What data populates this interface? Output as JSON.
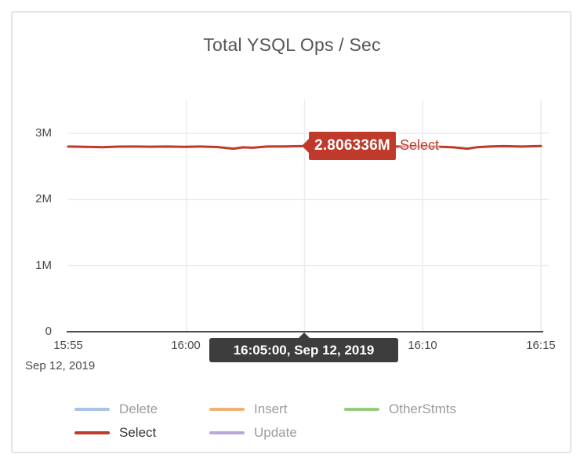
{
  "chart": {
    "title": "Total YSQL Ops / Sec"
  },
  "chart_data": {
    "type": "line",
    "title": "Total YSQL Ops / Sec",
    "x_axis": {
      "tick_labels": [
        "15:55",
        "16:00",
        "16:10",
        "16:15"
      ],
      "tick_minutes": [
        0,
        5,
        15,
        20
      ],
      "gridline_minutes": [
        5,
        10,
        15,
        20
      ],
      "start_time": "15:55",
      "end_time": "16:15",
      "date_label": "Sep 12, 2019",
      "range_minutes": [
        0,
        20
      ]
    },
    "y_axis": {
      "tick_labels": [
        "0",
        "1M",
        "2M",
        "3M"
      ],
      "tick_values": [
        0,
        1,
        2,
        3
      ],
      "unit": "ops per sec (millions)",
      "ylim_display": [
        0,
        3.55
      ]
    },
    "grid": true,
    "legend_position": "bottom",
    "series": [
      {
        "name": "Delete",
        "color": "#a9c4e4",
        "points": []
      },
      {
        "name": "Insert",
        "color": "#f0b275",
        "points": []
      },
      {
        "name": "OtherStmts",
        "color": "#98ca7f",
        "points": []
      },
      {
        "name": "Select",
        "color": "#bf3a2b",
        "active": true,
        "points": [
          [
            0,
            2.8
          ],
          [
            0.7,
            2.795
          ],
          [
            1.4,
            2.79
          ],
          [
            2.1,
            2.798
          ],
          [
            2.8,
            2.8
          ],
          [
            3.5,
            2.797
          ],
          [
            4.2,
            2.8
          ],
          [
            4.9,
            2.796
          ],
          [
            5.6,
            2.8
          ],
          [
            6.3,
            2.792
          ],
          [
            7.0,
            2.768
          ],
          [
            7.4,
            2.788
          ],
          [
            7.8,
            2.782
          ],
          [
            8.4,
            2.8
          ],
          [
            9.2,
            2.802
          ],
          [
            10.0,
            2.806336
          ],
          [
            10.8,
            2.802
          ],
          [
            11.6,
            2.8
          ],
          [
            12.4,
            2.8
          ],
          [
            13.2,
            2.8
          ],
          [
            14.0,
            2.8
          ],
          [
            14.8,
            2.8
          ],
          [
            15.6,
            2.798
          ],
          [
            16.3,
            2.788
          ],
          [
            16.9,
            2.768
          ],
          [
            17.3,
            2.79
          ],
          [
            17.8,
            2.8
          ],
          [
            18.4,
            2.806
          ],
          [
            19.2,
            2.8
          ],
          [
            20.0,
            2.808
          ]
        ]
      },
      {
        "name": "Update",
        "color": "#b9a7dc",
        "points": []
      }
    ],
    "highlight": {
      "series": "Select",
      "time": "16:05:00",
      "value_millions": 2.806336
    }
  },
  "point_tooltip": {
    "value": "2.806336M",
    "series_label": "Select"
  },
  "axis_tooltip": {
    "text": "16:05:00, Sep 12, 2019"
  },
  "colors": {
    "select": "#bf3a2b",
    "axis_tooltip_bg": "#3d3d3d",
    "grid": "#ececec",
    "axis_line": "#4a4a4a",
    "muted_text": "#9b9b9b",
    "active_text": "#333333",
    "title_text": "#555555",
    "card_border": "#e3e3e3"
  }
}
